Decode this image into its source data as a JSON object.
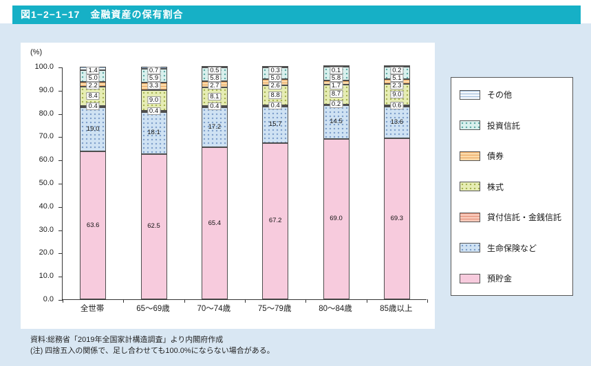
{
  "header": {
    "title": "図1−2−1−17　金融資産の保有割合"
  },
  "chart_data": {
    "type": "bar",
    "stacked": true,
    "orientation": "vertical",
    "title": "図1−2−1−17　金融資産の保有割合",
    "ylabel": "(%)",
    "xlabel": "",
    "ylim": [
      0,
      100
    ],
    "ytick_step": 10,
    "grid": false,
    "legend_position": "right",
    "categories": [
      "全世帯",
      "65〜69歳",
      "70〜74歳",
      "75〜79歳",
      "80〜84歳",
      "85歳以上"
    ],
    "series": [
      {
        "name": "預貯金",
        "values": [
          63.6,
          62.5,
          65.4,
          67.2,
          69.0,
          69.3
        ],
        "color": "#f7cbdd",
        "pattern": "solid",
        "pattern_color": "#f7cbdd"
      },
      {
        "name": "生命保険など",
        "values": [
          19.0,
          18.1,
          17.2,
          15.7,
          14.5,
          13.6
        ],
        "color": "#cfe2f3",
        "pattern": "dots",
        "pattern_color": "#7b9cc9"
      },
      {
        "name": "貸付信託・金銭信託",
        "values": [
          0.4,
          0.4,
          0.4,
          0.4,
          0.2,
          0.6
        ],
        "color": "#f8c7b8",
        "pattern": "hstripes",
        "pattern_color": "#e28f77"
      },
      {
        "name": "株式",
        "values": [
          8.4,
          9.0,
          8.1,
          8.8,
          8.7,
          9.0
        ],
        "color": "#e6edb4",
        "pattern": "dots",
        "pattern_color": "#a3b04e"
      },
      {
        "name": "債券",
        "values": [
          2.2,
          3.3,
          2.7,
          2.6,
          1.7,
          2.3
        ],
        "color": "#fbd9a8",
        "pattern": "hstripes",
        "pattern_color": "#e9a45e"
      },
      {
        "name": "投資信託",
        "values": [
          5.0,
          5.9,
          5.8,
          5.0,
          5.8,
          5.1
        ],
        "color": "#d9f0ed",
        "pattern": "dots",
        "pattern_color": "#5aa8a2"
      },
      {
        "name": "その他",
        "values": [
          1.4,
          0.7,
          0.5,
          0.3,
          0.1,
          0.2
        ],
        "color": "#f0f5fb",
        "pattern": "hstripes",
        "pattern_color": "#9dbbda"
      }
    ],
    "legend": [
      "その他",
      "投資信託",
      "債券",
      "株式",
      "貸付信託・金銭信託",
      "生命保険など",
      "預貯金"
    ]
  },
  "footer": {
    "source": "資料:総務省「2019年全国家計構造調査」より内閣府作成",
    "note": "(注) 四捨五入の関係で、足し合わせても100.0%にならない場合がある。"
  },
  "colors": {
    "header_bg": "#16b0c6",
    "page_bg": "#d9e7f3",
    "chart_bg": "#ffffff"
  }
}
